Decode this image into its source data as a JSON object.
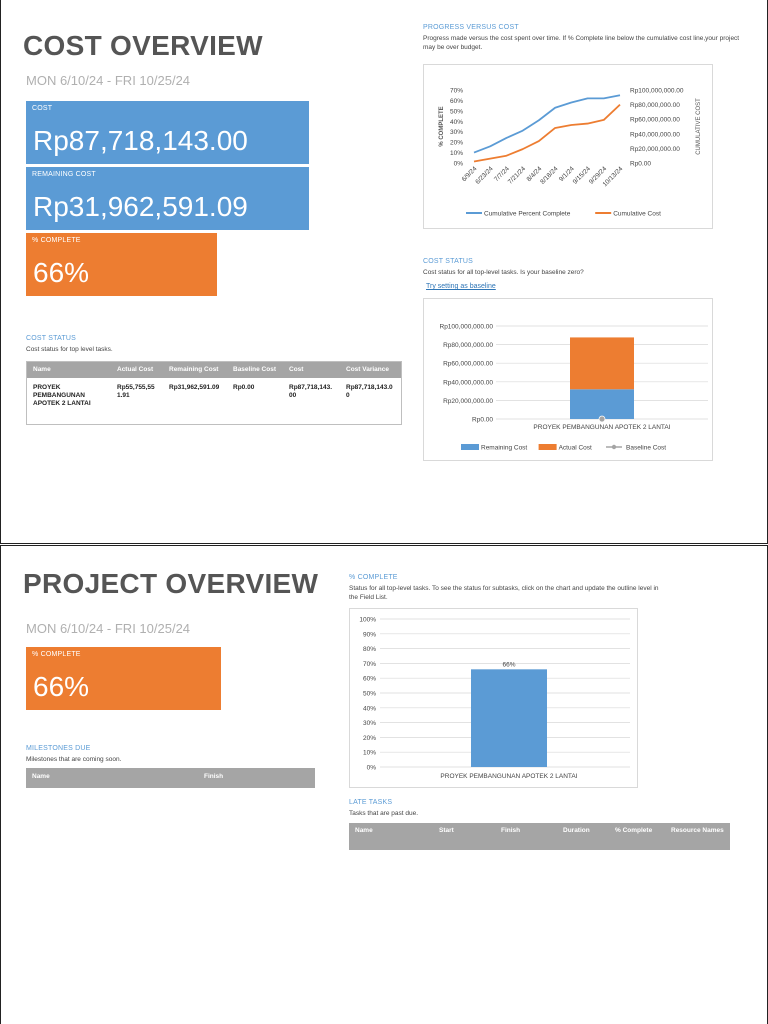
{
  "page1": {
    "title": "COST OVERVIEW",
    "date_range": "MON 6/10/24 -   FRI 10/25/24",
    "tiles": {
      "cost": {
        "label": "COST",
        "value": "Rp87,718,143.00"
      },
      "remaining": {
        "label": "REMAINING COST",
        "value": "Rp31,962,591.09"
      },
      "complete": {
        "label": "% COMPLETE",
        "value": "66%"
      }
    },
    "progress": {
      "title": "PROGRESS VERSUS COST",
      "desc": "Progress made versus the cost spent over time. If % Complete line below the cumulative cost line,your project may be over budget."
    },
    "cost_status_chart": {
      "title": "COST STATUS",
      "desc": "Cost status for all top-level tasks. Is your baseline zero?",
      "link": "Try setting as baseline"
    },
    "cost_status_table": {
      "title": "COST STATUS",
      "desc": "Cost status for top level tasks.",
      "headers": [
        "Name",
        "Actual Cost",
        "Remaining Cost",
        "Baseline Cost",
        "Cost",
        "Cost Variance"
      ],
      "rows": [
        [
          "PROYEK PEMBANGUNAN APOTEK 2 LANTAI",
          "Rp55,755,551.91",
          "Rp31,962,591.09",
          "Rp0.00",
          "Rp87,718,143.00",
          "Rp87,718,143.00"
        ]
      ]
    }
  },
  "page2": {
    "title": "PROJECT OVERVIEW",
    "date_range": "MON 6/10/24 -   FRI 10/25/24",
    "tile": {
      "label": "% COMPLETE",
      "value": "66%"
    },
    "complete_section": {
      "title": "% COMPLETE",
      "desc": "Status for all top-level tasks. To see the status for subtasks, click on the chart and update the outline level in the Field List."
    },
    "milestones": {
      "title": "MILESTONES DUE",
      "desc": "Milestones that are coming soon.",
      "headers": [
        "Name",
        "Finish"
      ]
    },
    "late_tasks": {
      "title": "LATE TASKS",
      "desc": "Tasks that are past due.",
      "headers": [
        "Name",
        "Start",
        "Finish",
        "Duration",
        "% Complete",
        "Resource Names"
      ]
    }
  },
  "colors": {
    "blue": "#5b9bd5",
    "orange": "#ed7d31",
    "gray": "#a5a5a5",
    "title_gray": "#555555"
  },
  "chart_data": [
    {
      "type": "line",
      "x": [
        "6/9/24",
        "6/23/24",
        "7/7/24",
        "7/21/24",
        "8/4/24",
        "8/18/24",
        "9/1/24",
        "9/15/24",
        "9/29/24",
        "10/13/24"
      ],
      "x_ticks": [
        "6/9/24",
        "6/23/24",
        "7/7/24",
        "7/21/24",
        "8/4/24",
        "8/18/24",
        "9/1/24",
        "9/15/24",
        "9/29/24",
        "10/13/24"
      ],
      "series": [
        {
          "name": "Cumulative Percent Complete",
          "axis": "left",
          "color": "#5b9bd5",
          "values": [
            0.1,
            0.16,
            0.24,
            0.31,
            0.41,
            0.53,
            0.58,
            0.62,
            0.62,
            0.65
          ]
        },
        {
          "name": "Cumulative Cost",
          "axis": "right",
          "color": "#ed7d31",
          "values": [
            2000000,
            6000000,
            10000000,
            19000000,
            30000000,
            48000000,
            52000000,
            54000000,
            59000000,
            80000000
          ]
        }
      ],
      "ylabel_left": "% COMPLETE",
      "ylabel_right": "CUMULATIVE COST",
      "yticks_left": [
        "0%",
        "10%",
        "20%",
        "30%",
        "40%",
        "50%",
        "60%",
        "70%"
      ],
      "yticks_right": [
        "Rp0.00",
        "Rp20,000,000.00",
        "Rp40,000,000.00",
        "Rp60,000,000.00",
        "Rp80,000,000.00",
        "Rp100,000,000.00"
      ],
      "ylim_left": [
        0,
        0.7
      ],
      "ylim_right": [
        0,
        100000000
      ],
      "legend": "bottom"
    },
    {
      "type": "bar",
      "stacked": true,
      "categories": [
        "PROYEK PEMBANGUNAN APOTEK 2 LANTAI"
      ],
      "series": [
        {
          "name": "Remaining Cost",
          "color": "#5b9bd5",
          "values": [
            31962591.09
          ]
        },
        {
          "name": "Actual Cost",
          "color": "#ed7d31",
          "values": [
            55755551.91
          ]
        },
        {
          "name": "Baseline Cost",
          "color": "#a5a5a5",
          "values": [
            0
          ]
        }
      ],
      "yticks": [
        "Rp0.00",
        "Rp20,000,000.00",
        "Rp40,000,000.00",
        "Rp60,000,000.00",
        "Rp80,000,000.00",
        "Rp100,000,000.00"
      ],
      "ylim": [
        0,
        100000000
      ],
      "legend": "bottom"
    },
    {
      "type": "bar",
      "categories": [
        "PROYEK PEMBANGUNAN APOTEK 2 LANTAI"
      ],
      "values": [
        0.66
      ],
      "data_labels": [
        "66%"
      ],
      "yticks": [
        "0%",
        "10%",
        "20%",
        "30%",
        "40%",
        "50%",
        "60%",
        "70%",
        "80%",
        "90%",
        "100%"
      ],
      "ylim": [
        0,
        1
      ],
      "color": "#5b9bd5"
    }
  ]
}
